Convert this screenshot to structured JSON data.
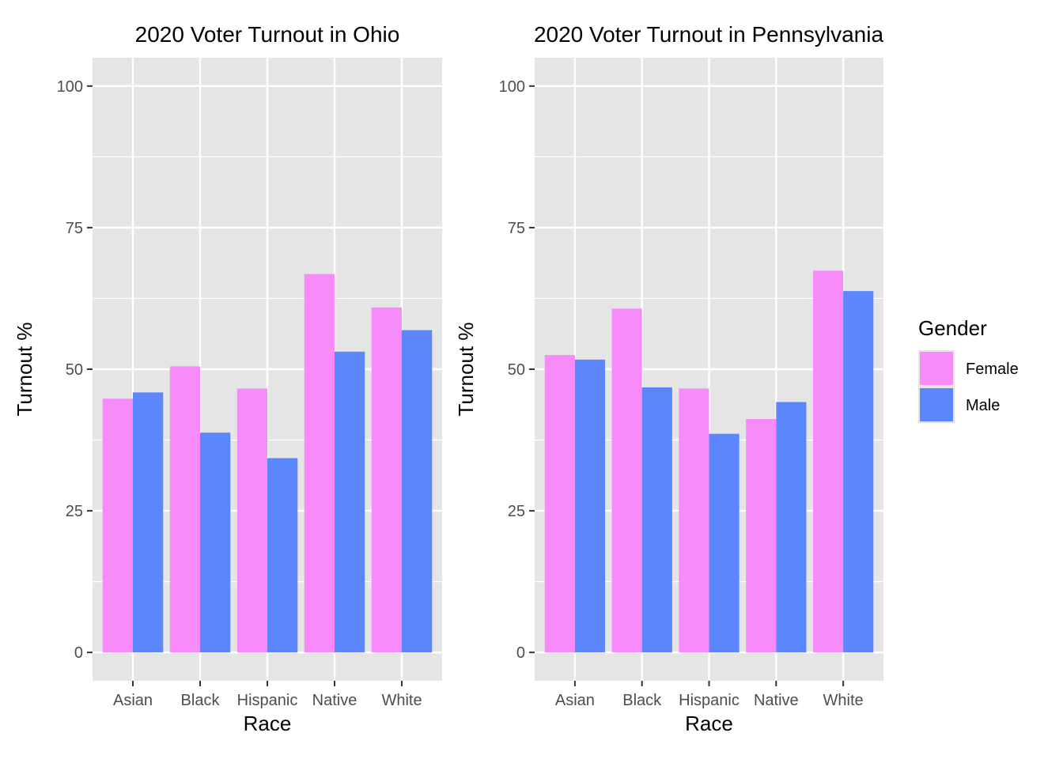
{
  "chart_data": [
    {
      "type": "bar",
      "title": "2020 Voter Turnout in Ohio",
      "xlabel": "Race",
      "ylabel": "Turnout %",
      "categories": [
        "Asian",
        "Black",
        "Hispanic",
        "Native",
        "White"
      ],
      "series": [
        {
          "name": "Female",
          "values": [
            44.8,
            50.5,
            46.6,
            66.8,
            60.9
          ]
        },
        {
          "name": "Male",
          "values": [
            45.9,
            38.8,
            34.3,
            53.1,
            56.9
          ]
        }
      ],
      "ylim": [
        -5,
        105
      ],
      "yticks": [
        0,
        25,
        50,
        75,
        100
      ],
      "grid": true
    },
    {
      "type": "bar",
      "title": "2020 Voter Turnout in Pennsylvania",
      "xlabel": "Race",
      "ylabel": "Turnout %",
      "categories": [
        "Asian",
        "Black",
        "Hispanic",
        "Native",
        "White"
      ],
      "series": [
        {
          "name": "Female",
          "values": [
            52.5,
            60.7,
            46.6,
            41.2,
            67.4
          ]
        },
        {
          "name": "Male",
          "values": [
            51.7,
            46.8,
            38.6,
            44.2,
            63.8
          ]
        }
      ],
      "ylim": [
        -5,
        105
      ],
      "yticks": [
        0,
        25,
        50,
        75,
        100
      ],
      "grid": true
    }
  ],
  "legend": {
    "title": "Gender",
    "placement": "right",
    "items": [
      {
        "label": "Female",
        "color": "#f68bf9"
      },
      {
        "label": "Male",
        "color": "#5b86fc"
      }
    ]
  },
  "colors": {
    "panel_background": "#e5e5e5",
    "grid": "#ffffff",
    "female": "#f68bf9",
    "male": "#5b86fc"
  }
}
